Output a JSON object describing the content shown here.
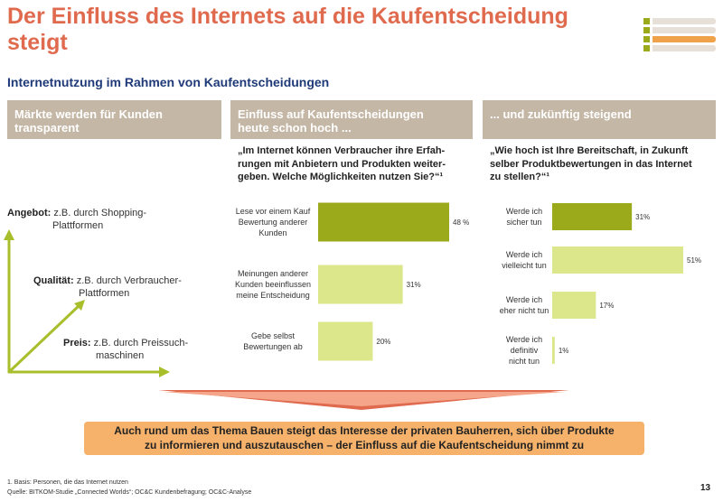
{
  "title_line1": "Der Einfluss des Internets auf die Kaufentscheidung",
  "title_line2": "steigt",
  "subtitle": "Internetnutzung im Rahmen von Kaufentscheidungen",
  "col1": {
    "header_line1": "Märkte werden für Kunden",
    "header_line2": "transparent",
    "items": [
      {
        "label": "Angebot:",
        "text_line1": "z.B. durch Shopping-",
        "text_line2": "Plattformen"
      },
      {
        "label": "Qualität:",
        "text_line1": "z.B. durch Verbraucher-",
        "text_line2": "Plattformen"
      },
      {
        "label": "Preis:",
        "text_line1": "z.B. durch Preissuch-",
        "text_line2": "maschinen"
      }
    ]
  },
  "col2": {
    "header_line1": "Einfluss auf Kaufentscheidungen",
    "header_line2": "heute schon hoch ...",
    "question_line1": "„Im Internet können Verbraucher ihre Erfah-",
    "question_line2": "rungen mit Anbietern und Produkten weiter-",
    "question_line3": "geben. Welche Möglichkeiten nutzen Sie?“¹"
  },
  "col3": {
    "header": "... und zukünftig steigend",
    "question_line1": "„Wie hoch ist Ihre Bereitschaft, in Zukunft",
    "question_line2": "selber Produktbewertungen in das Internet",
    "question_line3": "zu stellen?“¹"
  },
  "chart_data": [
    {
      "type": "bar",
      "orientation": "horizontal",
      "categories": [
        [
          "Lese vor einem Kauf",
          "Bewertung anderer",
          "Kunden"
        ],
        [
          "Meinungen anderer",
          "Kunden beeinflussen",
          "meine Entscheidung"
        ],
        [
          "Gebe selbst",
          "Bewertungen ab"
        ]
      ],
      "values": [
        48,
        31,
        20
      ],
      "value_labels": [
        "48 %",
        "31%",
        "20%"
      ],
      "bar_colors": [
        "#9aaa1b",
        "#dce78b",
        "#dce78b"
      ],
      "xlim": [
        0,
        48
      ]
    },
    {
      "type": "bar",
      "orientation": "horizontal",
      "categories": [
        [
          "Werde ich",
          "sicher tun"
        ],
        [
          "Werde ich",
          "vielleicht tun"
        ],
        [
          "Werde ich",
          "eher nicht tun"
        ],
        [
          "Werde ich",
          "definitiv",
          "nicht tun"
        ]
      ],
      "values": [
        31,
        51,
        17,
        1
      ],
      "value_labels": [
        "31%",
        "51%",
        "17%",
        "1%"
      ],
      "bar_colors": [
        "#9aaa1b",
        "#dce78b",
        "#dce78b",
        "#dce78b"
      ],
      "xlim": [
        0,
        51
      ]
    }
  ],
  "bottom_line1": "Auch rund um das Thema Bauen steigt das Interesse der privaten Bauherren, sich über Produkte",
  "bottom_line2": "zu informieren und auszutauschen – der Einfluss auf die Kaufentscheidung nimmt zu",
  "footnote1": "1.      Basis: Personen, die das Internet nutzen",
  "footnote2": "Quelle: BITKOM-Studie „Connected Worlds“; OC&C Kundenbefragung; OC&C-Analyse",
  "page_number": "13",
  "colors": {
    "title": "#e06a4e",
    "subtitle": "#1f3a78",
    "header_bg": "#c5b7a6",
    "bar_dark": "#9aaa1b",
    "bar_light": "#dce78b",
    "arrow": "#e06a4e",
    "bottom_box": "#f6b26b"
  }
}
